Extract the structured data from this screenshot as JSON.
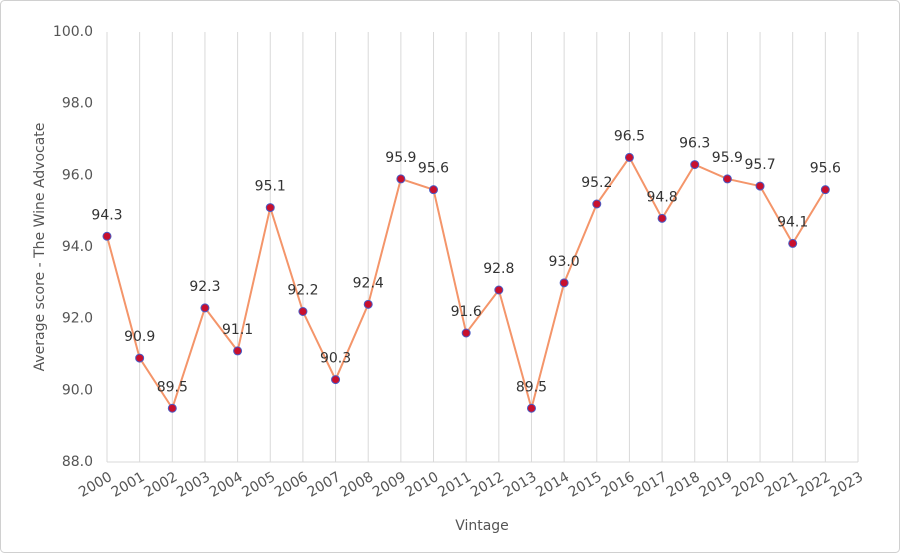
{
  "chart_data": {
    "type": "line",
    "x_label": "Vintage",
    "y_label": "Average score - The Wine Advocate",
    "categories": [
      "2000",
      "2001",
      "2002",
      "2003",
      "2004",
      "2005",
      "2006",
      "2007",
      "2008",
      "2009",
      "2010",
      "2011",
      "2012",
      "2013",
      "2014",
      "2015",
      "2016",
      "2017",
      "2018",
      "2019",
      "2020",
      "2021",
      "2022",
      "2023"
    ],
    "series": [
      {
        "name": "Average score",
        "color": "#f4956a",
        "marker_color": "#c8102e",
        "marker_edge": "#4a5bc4",
        "values": [
          94.3,
          90.9,
          89.5,
          92.3,
          91.1,
          95.1,
          92.2,
          90.3,
          92.4,
          95.9,
          95.6,
          91.6,
          92.8,
          89.5,
          93.0,
          95.2,
          96.5,
          94.8,
          96.3,
          95.9,
          95.7,
          94.1,
          95.6,
          null
        ],
        "value_labels": [
          "94.3",
          "90.9",
          "89.5",
          "92.3",
          "91.1",
          "95.1",
          "92.2",
          "90.3",
          "92.4",
          "95.9",
          "95.6",
          "91.6",
          "92.8",
          "89.5",
          "93.0",
          "95.2",
          "96.5",
          "94.8",
          "96.3",
          "95.9",
          "95.7",
          "94.1",
          "95.6",
          null
        ]
      }
    ],
    "ylim": [
      88,
      100
    ],
    "yticks": [
      {
        "value": 88,
        "label": "88.0"
      },
      {
        "value": 90,
        "label": "90.0"
      },
      {
        "value": 92,
        "label": "92.0"
      },
      {
        "value": 94,
        "label": "94.0"
      },
      {
        "value": 96,
        "label": "96.0"
      },
      {
        "value": 98,
        "label": "98.0"
      },
      {
        "value": 100,
        "label": "100.0"
      }
    ],
    "grid": "x"
  }
}
